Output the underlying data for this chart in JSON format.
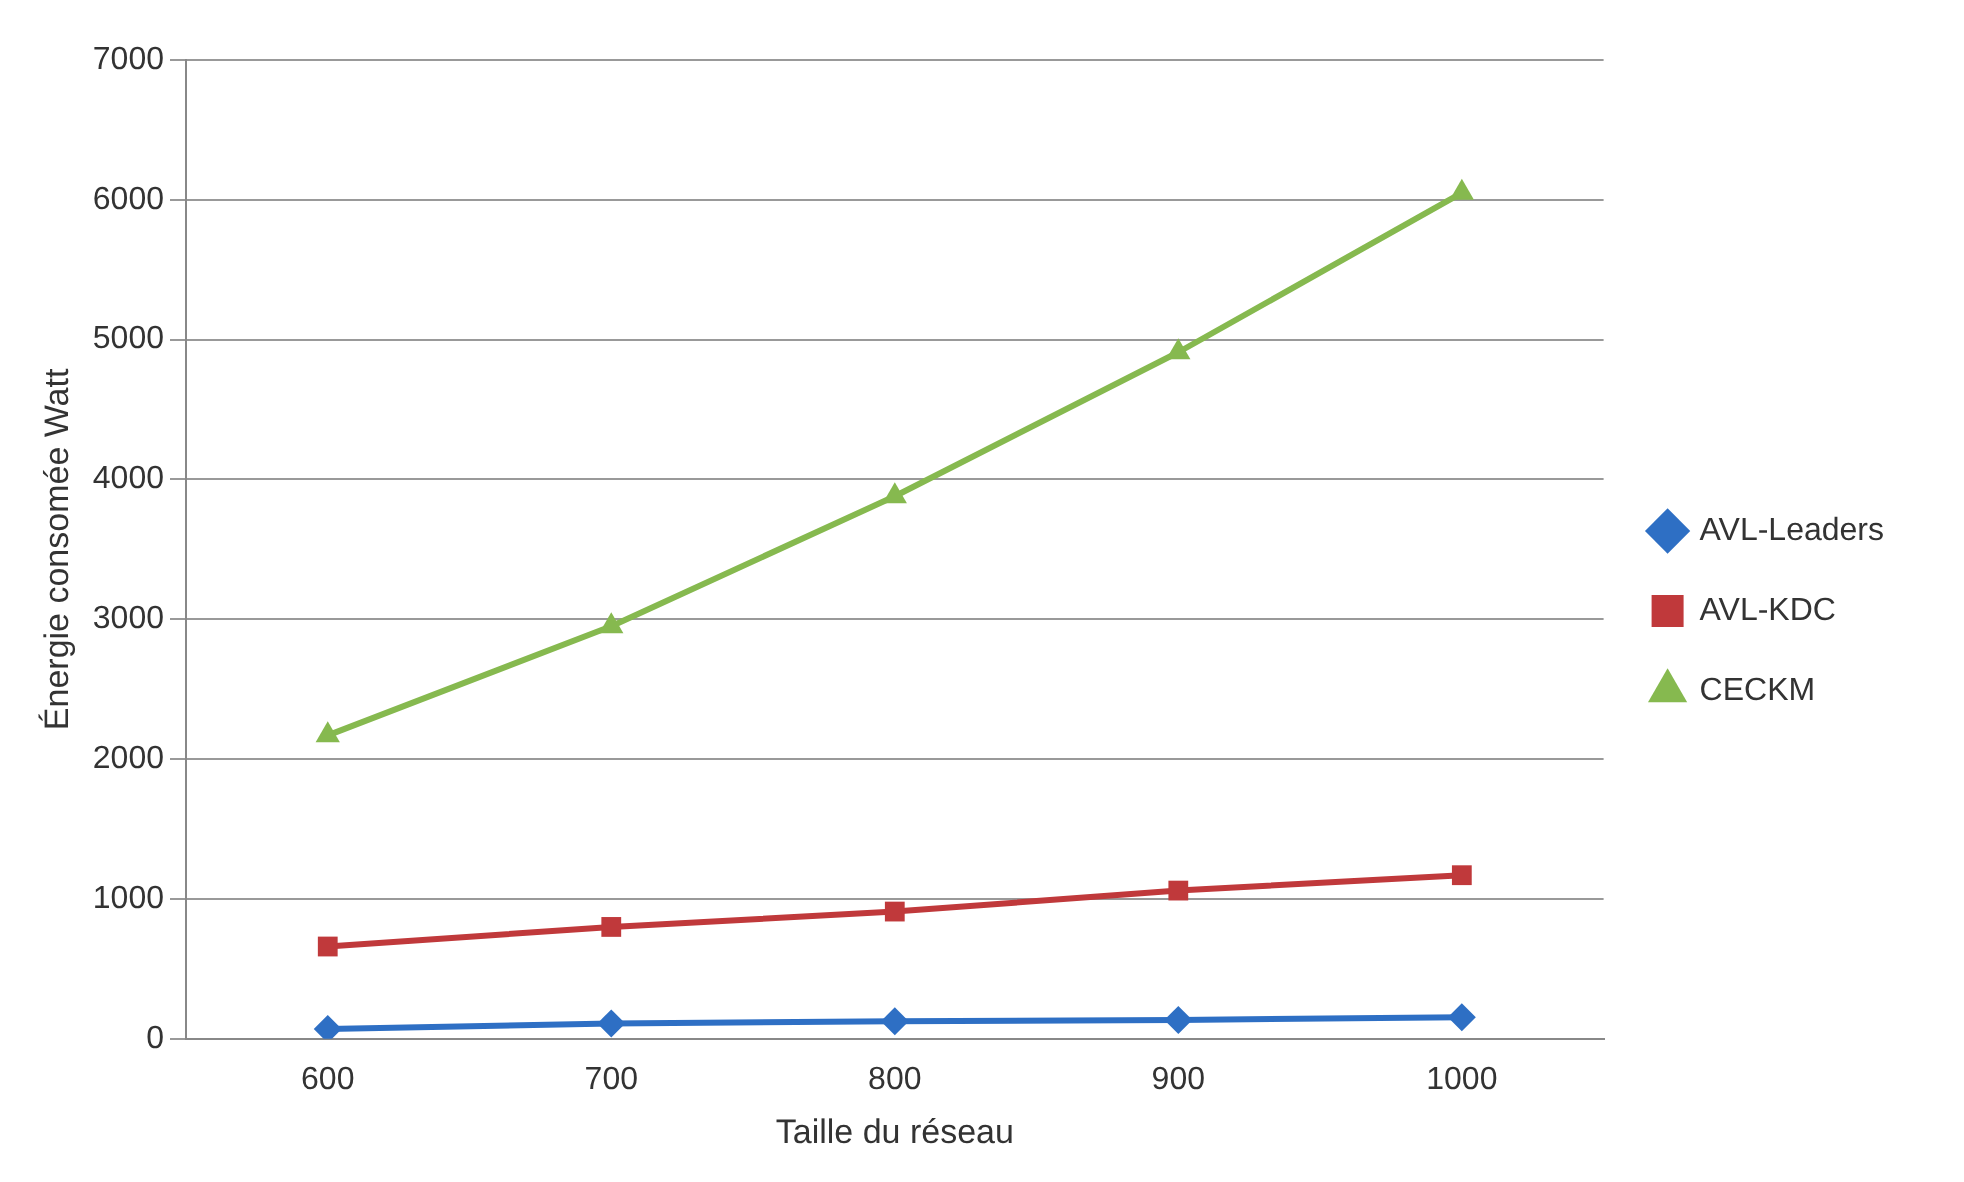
{
  "chart_data": {
    "type": "line",
    "xlabel": "Taille du réseau",
    "ylabel": "Énergie consomée Watt",
    "categories": [
      "600",
      "700",
      "800",
      "900",
      "1000"
    ],
    "series": [
      {
        "name": "AVL-Leaders",
        "color": "#2e6fc4",
        "marker": "diamond",
        "values": [
          70,
          110,
          125,
          135,
          155
        ]
      },
      {
        "name": "AVL-KDC",
        "color": "#c0393b",
        "marker": "square",
        "values": [
          660,
          800,
          910,
          1060,
          1170
        ]
      },
      {
        "name": "CECKM",
        "color": "#86b94f",
        "marker": "triangle",
        "values": [
          2170,
          2950,
          3880,
          4910,
          6050
        ]
      }
    ],
    "ylim": [
      0,
      7000
    ],
    "yticks": [
      0,
      1000,
      2000,
      3000,
      4000,
      5000,
      6000,
      7000
    ],
    "grid": "y",
    "legend": "right"
  }
}
